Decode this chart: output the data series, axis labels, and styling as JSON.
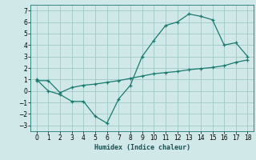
{
  "xlabel": "Humidex (Indice chaleur)",
  "bg_color": "#d0e8e8",
  "line_color": "#1a7a6e",
  "grid_color": "#a0c8c8",
  "line1_x": [
    0,
    1,
    2,
    3,
    4,
    5,
    6,
    7,
    8,
    9,
    10,
    11,
    12,
    13,
    14,
    15,
    16,
    17,
    18
  ],
  "line1_y": [
    1.0,
    0.0,
    -0.3,
    -0.9,
    -0.9,
    -2.2,
    -2.8,
    -0.7,
    0.5,
    3.0,
    4.4,
    5.7,
    6.0,
    6.7,
    6.5,
    6.2,
    4.0,
    4.2,
    3.0
  ],
  "line2_x": [
    0,
    1,
    2,
    3,
    4,
    5,
    6,
    7,
    8,
    9,
    10,
    11,
    12,
    13,
    14,
    15,
    16,
    17,
    18
  ],
  "line2_y": [
    0.9,
    0.9,
    -0.15,
    0.3,
    0.5,
    0.6,
    0.75,
    0.9,
    1.1,
    1.3,
    1.5,
    1.6,
    1.7,
    1.85,
    1.95,
    2.05,
    2.2,
    2.5,
    2.7
  ],
  "xlim": [
    -0.5,
    18.5
  ],
  "ylim": [
    -3.5,
    7.5
  ],
  "yticks": [
    -3,
    -2,
    -1,
    0,
    1,
    2,
    3,
    4,
    5,
    6,
    7
  ],
  "xticks": [
    0,
    1,
    2,
    3,
    4,
    5,
    6,
    7,
    8,
    9,
    10,
    11,
    12,
    13,
    14,
    15,
    16,
    17,
    18
  ]
}
